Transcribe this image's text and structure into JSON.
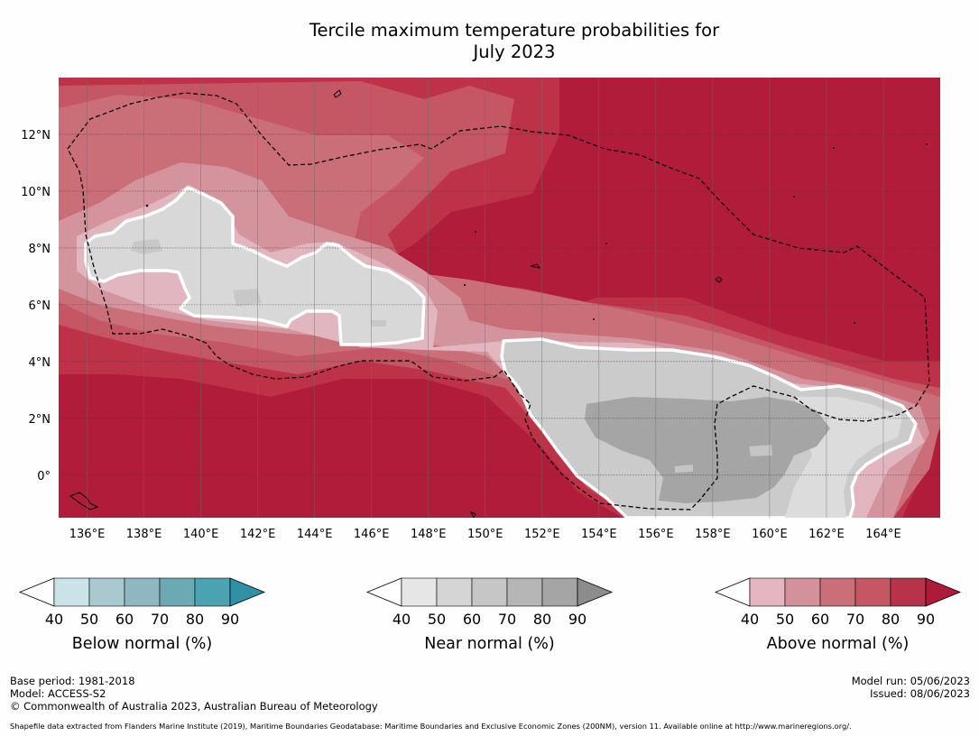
{
  "title": {
    "line1": "Tercile maximum temperature probabilities for",
    "line2": "July 2023"
  },
  "map": {
    "lon_range": [
      135,
      166
    ],
    "lat_range": [
      -1.5,
      14
    ],
    "x_ticks": [
      "136°E",
      "138°E",
      "140°E",
      "142°E",
      "144°E",
      "146°E",
      "148°E",
      "150°E",
      "152°E",
      "154°E",
      "156°E",
      "158°E",
      "160°E",
      "162°E",
      "164°E"
    ],
    "y_ticks": [
      "12°N",
      "10°N",
      "8°N",
      "6°N",
      "4°N",
      "2°N",
      "0°"
    ]
  },
  "legend": {
    "tick_labels": [
      "40",
      "50",
      "60",
      "70",
      "80",
      "90"
    ],
    "below": {
      "label": "Below normal (%)",
      "colors": [
        "#c9e3e9",
        "#a8c9cf",
        "#8db7c1",
        "#6ba9b5",
        "#4ba2b1",
        "#2f91a3"
      ]
    },
    "near": {
      "label": "Near normal (%)",
      "colors": [
        "#e6e6e6",
        "#d5d5d5",
        "#c6c6c6",
        "#b6b6b6",
        "#a5a5a5",
        "#8c8c8c"
      ]
    },
    "above": {
      "label": "Above normal (%)",
      "colors": [
        "#e5b6bf",
        "#d3929b",
        "#c96f78",
        "#c45762",
        "#b8334a",
        "#ae1a39"
      ]
    }
  },
  "footer": {
    "base_period": "Base period: 1981-2018",
    "model": "Model: ACCESS-S2",
    "copyright": "© Commonwealth of Australia 2023, Australian Bureau of Meteorology",
    "model_run": "Model run: 05/06/2023",
    "issued": "Issued: 08/06/2023",
    "source": "Shapefile data extracted from Flanders Marine Institute (2019), Maritime Boundaries Geodatabase: Maritime Boundaries and Exclusive Economic Zones (200NM), version 11. Available online at http://www.marineregions.org/."
  }
}
